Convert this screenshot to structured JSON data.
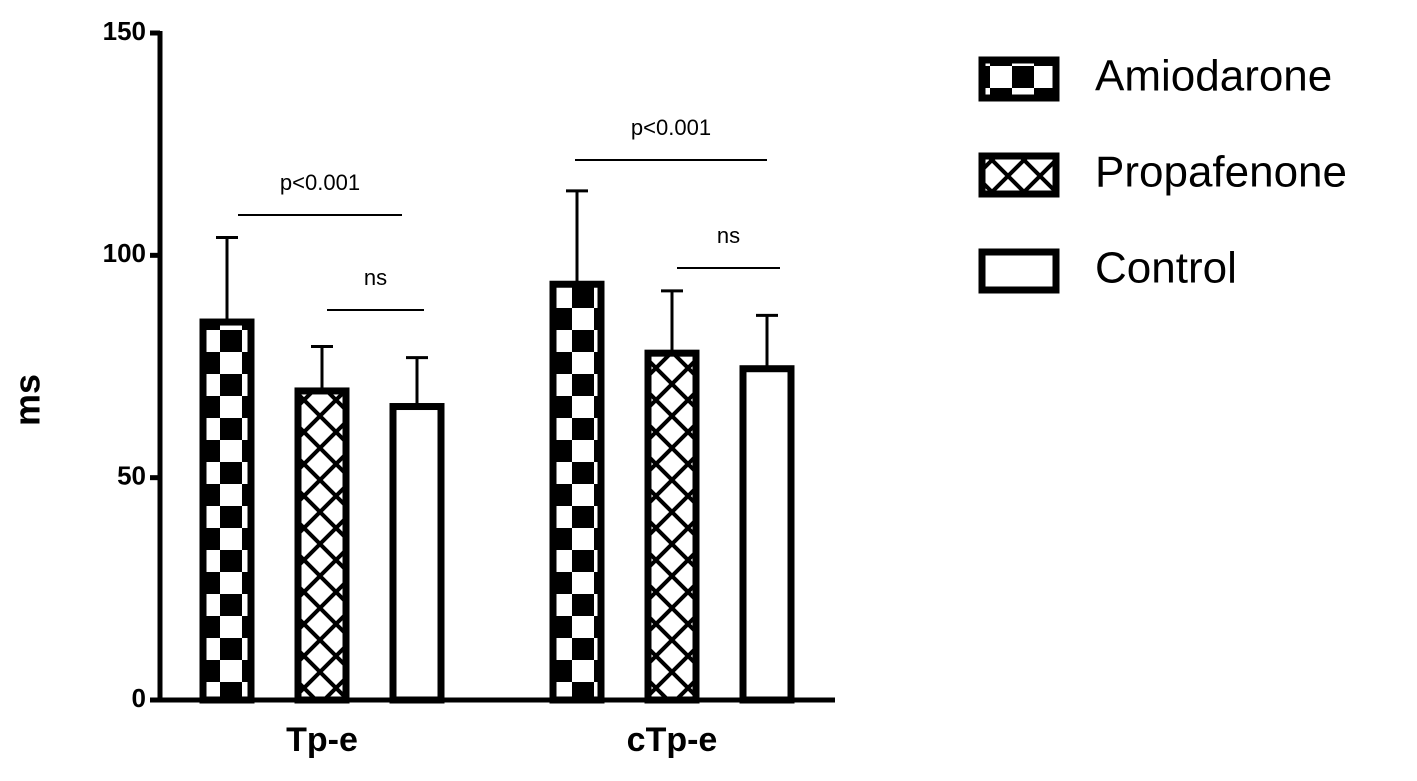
{
  "chart_data": {
    "type": "bar",
    "ylabel": "ms",
    "categories": [
      "Tp-e",
      "cTp-e"
    ],
    "series": [
      {
        "name": "Amiodarone",
        "color": "#000000",
        "pattern": "checker",
        "values": [
          85,
          93.5
        ],
        "errors": [
          19,
          21
        ]
      },
      {
        "name": "Propafenone",
        "color": "#000000",
        "pattern": "hatch",
        "values": [
          69.5,
          78
        ],
        "errors": [
          10,
          14
        ]
      },
      {
        "name": "Control",
        "color": "#000000",
        "pattern": "none",
        "values": [
          66,
          74.5
        ],
        "errors": [
          11,
          12
        ]
      }
    ],
    "annotations": [
      "p<0.001",
      "ns",
      "p<0.001",
      "ns"
    ],
    "ylim": [
      0,
      150
    ],
    "yticks": [
      0,
      50,
      100,
      150
    ],
    "grid": false,
    "legend": "right"
  }
}
